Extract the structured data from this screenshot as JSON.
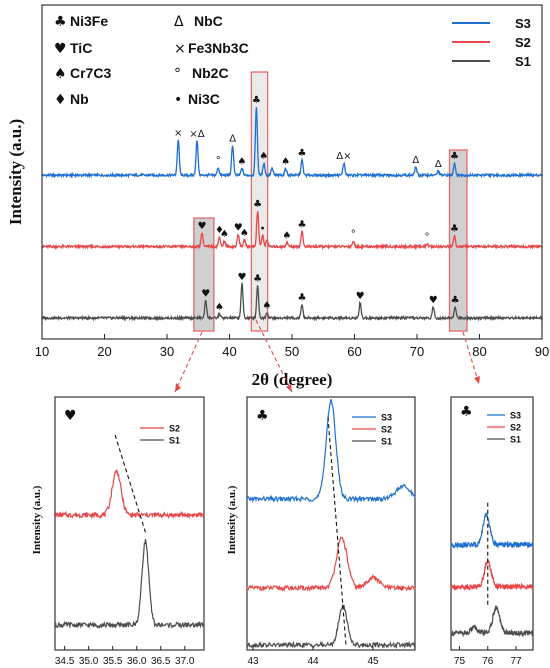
{
  "colors": {
    "S1": "#4d4d4d",
    "S2": "#e8474a",
    "S3": "#1f6fd0"
  },
  "main_panel": {
    "xlabel": "2θ (degree)",
    "ylabel": "Intensity (a.u.)",
    "phase_legend": [
      {
        "symbol": "♣",
        "name": "Ni3Fe"
      },
      {
        "symbol": "Δ",
        "name": "NbC"
      },
      {
        "symbol": "♥",
        "name": "TiC"
      },
      {
        "symbol": "×",
        "name": "Fe3Nb3C"
      },
      {
        "symbol": "♠",
        "name": "Cr7C3"
      },
      {
        "symbol": "°",
        "name": "Nb2C"
      },
      {
        "symbol": "♦",
        "name": "Nb"
      },
      {
        "symbol": "•",
        "name": "Ni3C"
      }
    ],
    "series_legend": [
      "S3",
      "S2",
      "S1"
    ]
  },
  "chart_data": [
    {
      "type": "line",
      "xlabel": "2θ (degree)",
      "ylabel": "Intensity (a.u.)",
      "xlim": [
        10,
        90
      ],
      "x_ticks": [
        10,
        20,
        30,
        40,
        50,
        60,
        70,
        80,
        90
      ],
      "y_ticks": "none",
      "legend_position": "top-right",
      "highlight_ranges": [
        [
          34.3,
          37.5
        ],
        [
          43.5,
          46.1
        ],
        [
          75.2,
          78.0
        ]
      ],
      "series": [
        {
          "name": "S3",
          "offset": 2.1,
          "peaks": [
            {
              "x": 31.8,
              "h": 0.52,
              "marker": "×"
            },
            {
              "x": 34.8,
              "h": 0.5,
              "marker": "×Δ"
            },
            {
              "x": 38.2,
              "h": 0.11,
              "marker": "°"
            },
            {
              "x": 40.5,
              "h": 0.44,
              "marker": "Δ"
            },
            {
              "x": 42.0,
              "h": 0.1,
              "marker": "♠"
            },
            {
              "x": 44.3,
              "h": 1.0,
              "marker": "♣"
            },
            {
              "x": 45.5,
              "h": 0.18,
              "marker": "♠"
            },
            {
              "x": 46.8,
              "h": 0.1,
              "marker": ""
            },
            {
              "x": 49.0,
              "h": 0.1,
              "marker": "♠"
            },
            {
              "x": 51.6,
              "h": 0.22,
              "marker": "♣"
            },
            {
              "x": 58.3,
              "h": 0.18,
              "marker": "Δ×"
            },
            {
              "x": 69.8,
              "h": 0.12,
              "marker": "Δ"
            },
            {
              "x": 73.4,
              "h": 0.06,
              "marker": "Δ"
            },
            {
              "x": 76.0,
              "h": 0.18,
              "marker": "♣"
            }
          ]
        },
        {
          "name": "S2",
          "offset": 1.05,
          "peaks": [
            {
              "x": 35.6,
              "h": 0.2,
              "marker": "♥"
            },
            {
              "x": 38.4,
              "h": 0.14,
              "marker": "♦"
            },
            {
              "x": 39.2,
              "h": 0.08,
              "marker": "♠"
            },
            {
              "x": 41.4,
              "h": 0.18,
              "marker": "♥"
            },
            {
              "x": 42.4,
              "h": 0.1,
              "marker": "♠"
            },
            {
              "x": 44.5,
              "h": 0.52,
              "marker": "♣"
            },
            {
              "x": 45.3,
              "h": 0.16,
              "marker": "•"
            },
            {
              "x": 46.0,
              "h": 0.1,
              "marker": ""
            },
            {
              "x": 49.2,
              "h": 0.06,
              "marker": "♠"
            },
            {
              "x": 51.6,
              "h": 0.22,
              "marker": "♣"
            },
            {
              "x": 59.8,
              "h": 0.08,
              "marker": "°"
            },
            {
              "x": 71.6,
              "h": 0.04,
              "marker": "°"
            },
            {
              "x": 76.0,
              "h": 0.16,
              "marker": "♣"
            }
          ]
        },
        {
          "name": "S1",
          "offset": 0.0,
          "peaks": [
            {
              "x": 36.2,
              "h": 0.26,
              "marker": "♥"
            },
            {
              "x": 38.4,
              "h": 0.06,
              "marker": "♠"
            },
            {
              "x": 42.0,
              "h": 0.5,
              "marker": "♥"
            },
            {
              "x": 44.5,
              "h": 0.48,
              "marker": "♣"
            },
            {
              "x": 46.0,
              "h": 0.08,
              "marker": "♠"
            },
            {
              "x": 51.6,
              "h": 0.2,
              "marker": "♣"
            },
            {
              "x": 60.9,
              "h": 0.22,
              "marker": "♥"
            },
            {
              "x": 72.6,
              "h": 0.16,
              "marker": "♥"
            },
            {
              "x": 76.1,
              "h": 0.16,
              "marker": "♣"
            }
          ]
        }
      ]
    },
    {
      "type": "line",
      "title_symbol": "♥",
      "ylabel": "Intensity (a.u.)",
      "xlim": [
        34.3,
        37.4
      ],
      "x_ticks": [
        34.5,
        35.0,
        35.5,
        36.0,
        36.5,
        37.0
      ],
      "x_tick_labels": [
        "34.5",
        "35.0",
        "35.5",
        "36.0",
        "36.5",
        "37.0"
      ],
      "legend_position": "top-right",
      "legend": [
        "S2",
        "S1"
      ],
      "guide_line": [
        [
          35.55,
          0.95
        ],
        [
          36.2,
          0.45
        ]
      ],
      "series": [
        {
          "name": "S2",
          "offset": 0.55,
          "peaks": [
            {
              "x": 35.58,
              "w": 0.09,
              "h": 0.22
            }
          ]
        },
        {
          "name": "S1",
          "offset": 0.0,
          "peaks": [
            {
              "x": 36.18,
              "w": 0.07,
              "h": 0.42
            }
          ]
        }
      ]
    },
    {
      "type": "line",
      "title_symbol": "♣",
      "ylabel": "Intensity (a.u.)",
      "xlim": [
        42.9,
        45.7
      ],
      "x_ticks": [
        43,
        44,
        45
      ],
      "x_tick_labels": [
        "43",
        "44",
        "45"
      ],
      "legend_position": "top-right",
      "legend": [
        "S3",
        "S2",
        "S1"
      ],
      "guide_line": [
        [
          44.25,
          1.28
        ],
        [
          44.55,
          0.0
        ]
      ],
      "series": [
        {
          "name": "S3",
          "offset": 0.82,
          "peaks": [
            {
              "x": 44.3,
              "w": 0.08,
              "h": 0.55
            },
            {
              "x": 45.5,
              "w": 0.12,
              "h": 0.07
            }
          ]
        },
        {
          "name": "S2",
          "offset": 0.32,
          "peaks": [
            {
              "x": 44.48,
              "w": 0.09,
              "h": 0.28
            },
            {
              "x": 45.0,
              "w": 0.1,
              "h": 0.06
            }
          ]
        },
        {
          "name": "S1",
          "offset": 0.0,
          "peaks": [
            {
              "x": 44.5,
              "w": 0.07,
              "h": 0.22
            }
          ]
        }
      ]
    },
    {
      "type": "line",
      "title_symbol": "♣",
      "xlim": [
        74.7,
        77.6
      ],
      "x_ticks": [
        75,
        76,
        77
      ],
      "x_tick_labels": [
        "75",
        "76",
        "77"
      ],
      "legend_position": "top-right",
      "legend": [
        "S3",
        "S2",
        "S1"
      ],
      "guide_line": [
        [
          76.0,
          0.62
        ],
        [
          76.0,
          0.12
        ]
      ],
      "series": [
        {
          "name": "S3",
          "offset": 0.42,
          "peaks": [
            {
              "x": 75.95,
              "w": 0.12,
              "h": 0.14
            }
          ]
        },
        {
          "name": "S2",
          "offset": 0.22,
          "peaks": [
            {
              "x": 76.0,
              "w": 0.12,
              "h": 0.12
            }
          ]
        },
        {
          "name": "S1",
          "offset": 0.0,
          "peaks": [
            {
              "x": 76.3,
              "w": 0.12,
              "h": 0.12
            },
            {
              "x": 75.5,
              "w": 0.1,
              "h": 0.03
            }
          ]
        }
      ]
    }
  ]
}
